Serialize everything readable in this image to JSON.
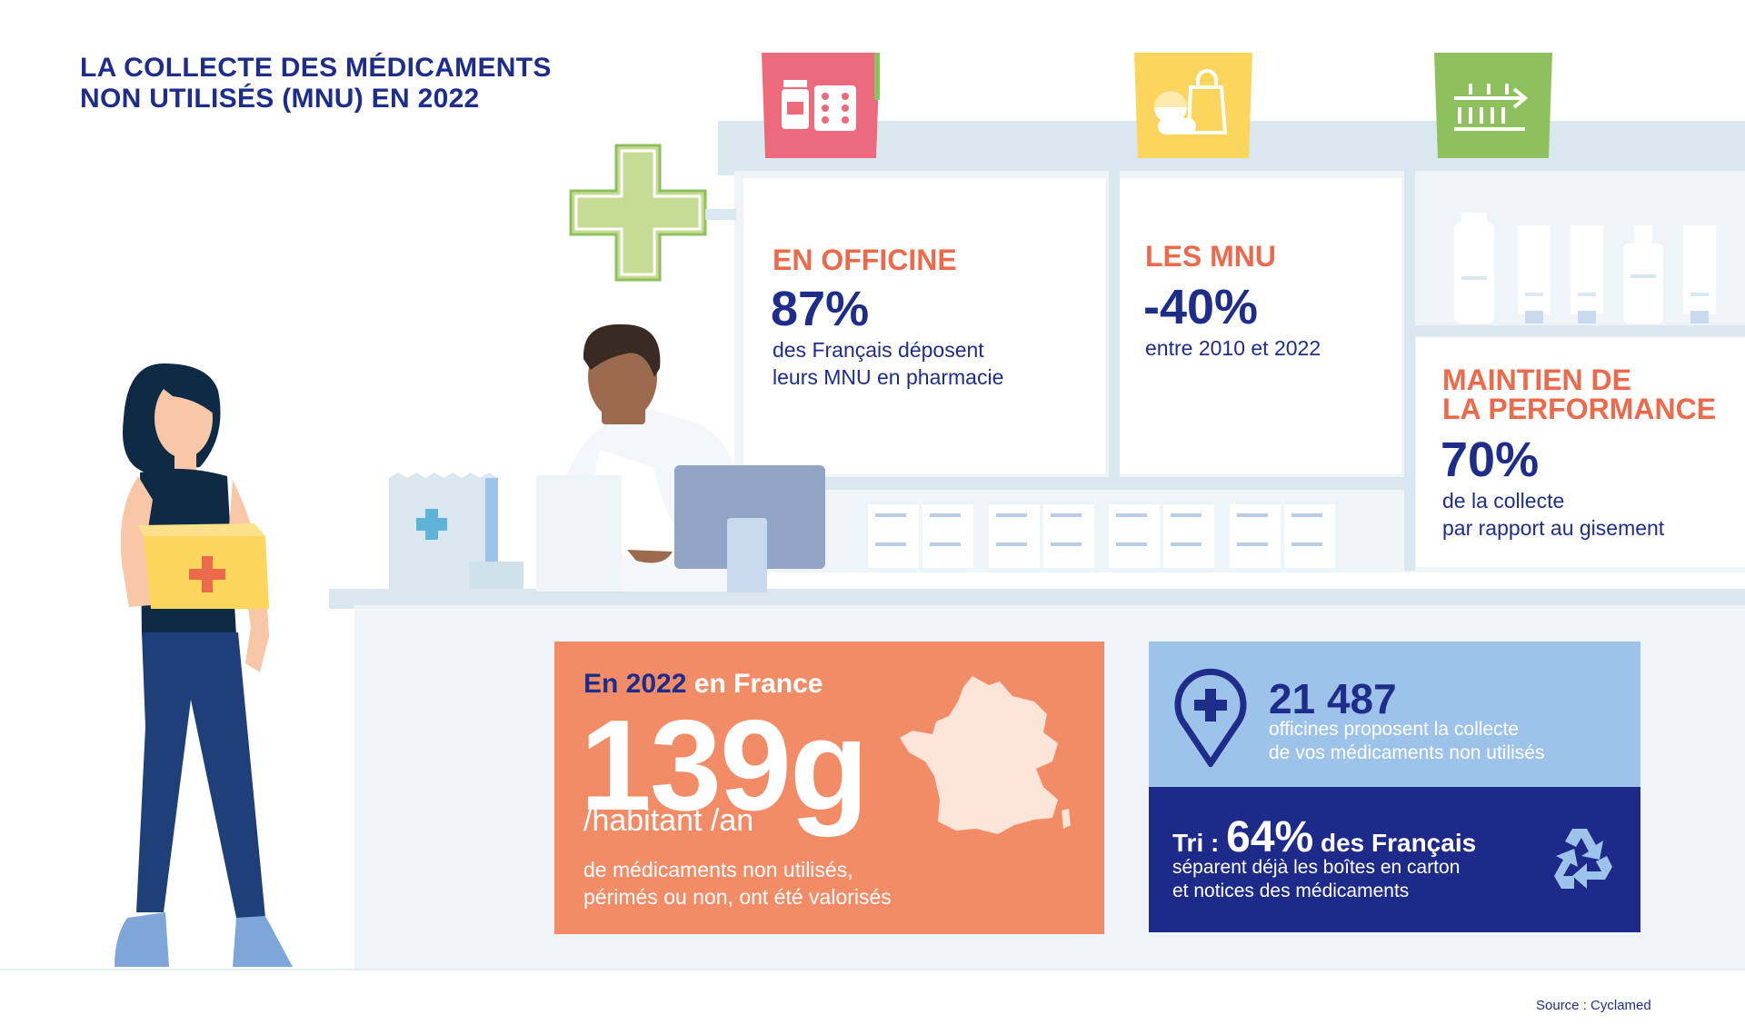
{
  "title": {
    "line1": "LA COLLECTE DES MÉDICAMENTS",
    "line2": "NON UTILISÉS (MNU) EN 2022"
  },
  "stat_officine": {
    "heading": "EN OFFICINE",
    "value": "87%",
    "line1": "des Français déposent",
    "line2": "leurs MNU en pharmacie"
  },
  "stat_mnu": {
    "heading": "LES MNU",
    "value": "-40%",
    "line1": "entre 2010 et 2022"
  },
  "stat_performance": {
    "heading1": "MAINTIEN DE",
    "heading2": "LA PERFORMANCE",
    "value": "70%",
    "line1": "de la collecte",
    "line2": "par rapport au gisement"
  },
  "france_box": {
    "year": "En 2022",
    "place": " en France",
    "value": "139g",
    "unit": "/habitant /an",
    "line1": "de médicaments non utilisés,",
    "line2": "périmés ou non, ont été valorisés"
  },
  "officines_box": {
    "value": "21 487",
    "line1": "officines proposent la collecte",
    "line2": "de vos médicaments non utilisés"
  },
  "tri_box": {
    "label": "Tri : ",
    "value": "64%",
    "suffix": " des Français",
    "line1": "séparent déjà les boîtes en carton",
    "line2": "et notices des médicaments"
  },
  "source": "Source : Cyclamed",
  "icons": [
    "medicine-icon",
    "waste-bag-icon",
    "sorting-arrow-icon",
    "location-pin-icon",
    "recycle-icon",
    "pharmacy-cross-icon",
    "france-map-icon"
  ],
  "colors": {
    "navy": "#1f2d8a",
    "orange": "#ec6a4c",
    "salmon": "#f28c67",
    "light_blue": "#9dc3ea",
    "pink": "#ec6a7c",
    "yellow": "#fcd55c",
    "green": "#8ec15e"
  }
}
